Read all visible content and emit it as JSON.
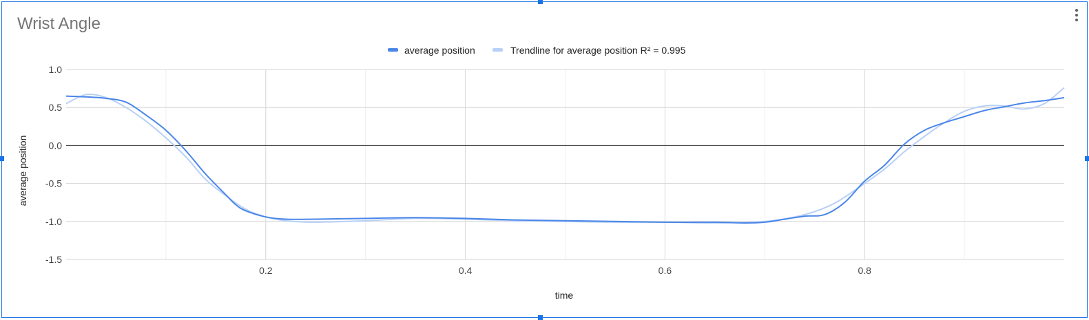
{
  "chart_data": {
    "type": "line",
    "title": "Wrist Angle",
    "xlabel": "time",
    "ylabel": "average position",
    "xlim": [
      0,
      1
    ],
    "ylim": [
      -1.5,
      1.0
    ],
    "x_ticks": [
      0.2,
      0.4,
      0.6,
      0.8
    ],
    "x_tick_labels": [
      "0.2",
      "0.4",
      "0.6",
      "0.8"
    ],
    "y_ticks": [
      1.0,
      0.5,
      0.0,
      -0.5,
      -1.0,
      -1.5
    ],
    "y_tick_labels": [
      "1.0",
      "0.5",
      "0.0",
      "-0.5",
      "-1.0",
      "-1.5"
    ],
    "grid": true,
    "legend_position": "top",
    "series": [
      {
        "name": "average position",
        "color": "#4a86e8",
        "x": [
          0.0,
          0.02,
          0.04,
          0.06,
          0.08,
          0.1,
          0.12,
          0.14,
          0.16,
          0.17,
          0.18,
          0.2,
          0.22,
          0.25,
          0.3,
          0.35,
          0.4,
          0.45,
          0.5,
          0.55,
          0.6,
          0.65,
          0.68,
          0.7,
          0.72,
          0.74,
          0.76,
          0.78,
          0.8,
          0.82,
          0.84,
          0.86,
          0.88,
          0.9,
          0.92,
          0.94,
          0.96,
          0.98,
          1.0
        ],
        "y": [
          0.65,
          0.64,
          0.62,
          0.57,
          0.4,
          0.2,
          -0.07,
          -0.38,
          -0.65,
          -0.78,
          -0.86,
          -0.94,
          -0.97,
          -0.97,
          -0.96,
          -0.95,
          -0.96,
          -0.98,
          -0.99,
          -1.0,
          -1.01,
          -1.01,
          -1.02,
          -1.01,
          -0.97,
          -0.93,
          -0.91,
          -0.75,
          -0.47,
          -0.26,
          0.02,
          0.2,
          0.3,
          0.38,
          0.46,
          0.51,
          0.56,
          0.59,
          0.63
        ]
      },
      {
        "name": "Trendline for average position R² = 0.995",
        "color": "#b7d0f7",
        "x": [
          0.0,
          0.02,
          0.04,
          0.06,
          0.08,
          0.1,
          0.12,
          0.14,
          0.16,
          0.18,
          0.2,
          0.22,
          0.25,
          0.3,
          0.35,
          0.4,
          0.45,
          0.5,
          0.55,
          0.6,
          0.65,
          0.7,
          0.74,
          0.77,
          0.8,
          0.82,
          0.84,
          0.86,
          0.88,
          0.9,
          0.92,
          0.94,
          0.96,
          0.98,
          1.0
        ],
        "y": [
          0.55,
          0.67,
          0.63,
          0.5,
          0.32,
          0.1,
          -0.15,
          -0.45,
          -0.66,
          -0.84,
          -0.94,
          -0.99,
          -1.01,
          -0.99,
          -0.96,
          -0.97,
          -0.99,
          -1.0,
          -1.01,
          -1.01,
          -1.02,
          -1.0,
          -0.91,
          -0.76,
          -0.5,
          -0.31,
          -0.08,
          0.12,
          0.3,
          0.45,
          0.52,
          0.52,
          0.48,
          0.55,
          0.76
        ]
      }
    ]
  }
}
